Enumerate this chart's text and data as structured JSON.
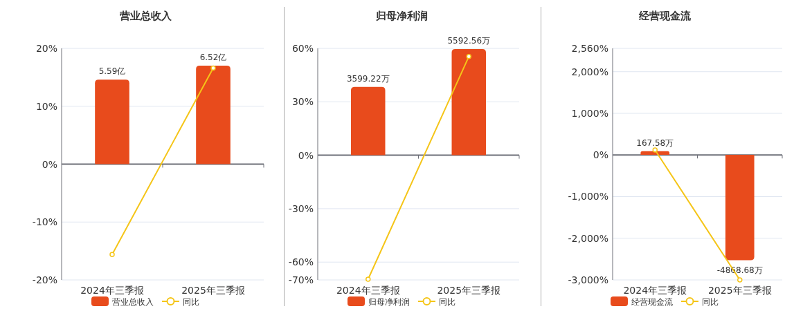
{
  "chart_data": [
    {
      "type": "bar",
      "title": "营业总收入",
      "categories": [
        "2024年三季报",
        "2025年三季报"
      ],
      "series": [
        {
          "name": "营业总收入",
          "axis": "y2",
          "color": "#e84b1c",
          "values": [
            5.59,
            6.52
          ],
          "value_labels": [
            "5.59亿",
            "6.52亿"
          ]
        },
        {
          "name": "同比",
          "type": "line",
          "color": "#f5c518",
          "values": [
            -15.6,
            16.6
          ]
        }
      ],
      "ylim": [
        -20,
        20
      ],
      "yticks": [
        {
          "value": 20,
          "label": "20%"
        },
        {
          "value": 10,
          "label": "10%"
        },
        {
          "value": 0,
          "label": "0%"
        },
        {
          "value": -10,
          "label": "-10%"
        },
        {
          "value": -20,
          "label": "-20%"
        }
      ],
      "y2lim": [
        -7.66,
        7.66
      ],
      "tick_labels": "xy",
      "grid": "y",
      "legend": "bottom",
      "marker": "circle"
    },
    {
      "type": "bar",
      "title": "归母净利润",
      "categories": [
        "2024年三季报",
        "2025年三季报"
      ],
      "series": [
        {
          "name": "归母净利润",
          "axis": "y2",
          "color": "#e84b1c",
          "values": [
            3599.22,
            5592.56
          ],
          "value_labels": [
            "3599.22万",
            "5592.56万"
          ]
        },
        {
          "name": "同比",
          "type": "line",
          "color": "#f5c518",
          "values": [
            -69.6,
            55.4
          ]
        }
      ],
      "ylim": [
        -70,
        60
      ],
      "yticks": [
        {
          "value": 60,
          "label": "60%"
        },
        {
          "value": 30,
          "label": "30%"
        },
        {
          "value": 0,
          "label": "0%"
        },
        {
          "value": -30,
          "label": "-30%"
        },
        {
          "value": -60,
          "label": "-60%"
        },
        {
          "value": -70,
          "label": "-70%"
        }
      ],
      "y2lim": [
        -6567,
        5629
      ],
      "tick_labels": "xy",
      "grid": "y",
      "legend": "bottom",
      "marker": "circle"
    },
    {
      "type": "bar",
      "title": "经营现金流",
      "categories": [
        "2024年三季报",
        "2025年三季报"
      ],
      "series": [
        {
          "name": "经营现金流",
          "axis": "y2",
          "color": "#e84b1c",
          "values": [
            167.58,
            -4868.68
          ],
          "value_labels": [
            "167.58万",
            "-4868.68万"
          ]
        },
        {
          "name": "同比",
          "type": "line",
          "color": "#f5c518",
          "values": [
            120,
            -3000
          ]
        }
      ],
      "ylim": [
        -3000,
        2560
      ],
      "yticks": [
        {
          "value": 2560,
          "label": "2,560%"
        },
        {
          "value": 2000,
          "label": "2,000%"
        },
        {
          "value": 1000,
          "label": "1,000%"
        },
        {
          "value": 0,
          "label": "0%"
        },
        {
          "value": -1000,
          "label": "-1,000%"
        },
        {
          "value": -2000,
          "label": "-2,000%"
        },
        {
          "value": -3000,
          "label": "-3,000%"
        }
      ],
      "y2lim": [
        -5775,
        4915
      ],
      "tick_labels": "xy",
      "grid": "y",
      "legend": "bottom",
      "marker": "circle"
    }
  ]
}
